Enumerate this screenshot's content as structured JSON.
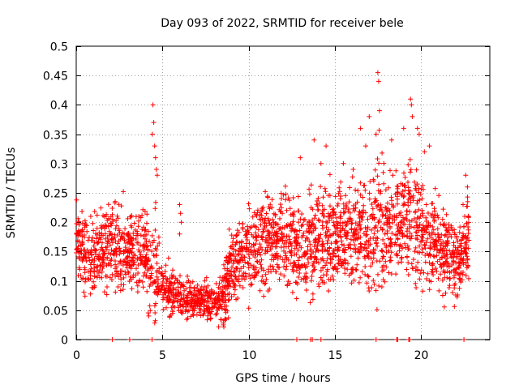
{
  "chart_data": {
    "type": "scatter",
    "title": "Day 093 of 2022, SRMTID for receiver bele",
    "xlabel": "GPS time / hours",
    "ylabel": "SRMTID / TECUs",
    "xlim": [
      0,
      24
    ],
    "ylim": [
      0,
      0.5
    ],
    "xticks": [
      0,
      5,
      10,
      15,
      20
    ],
    "xtick_labels": [
      "0",
      "5",
      "10",
      "15",
      "20"
    ],
    "yticks": [
      0,
      0.05,
      0.1,
      0.15,
      0.2,
      0.25,
      0.3,
      0.35,
      0.4,
      0.45,
      0.5
    ],
    "ytick_labels": [
      "0",
      "0.05",
      "0.1",
      "0.15",
      "0.2",
      "0.25",
      "0.3",
      "0.35",
      "0.4",
      "0.45",
      "0.5"
    ],
    "grid": true,
    "marker": "+",
    "marker_color": "#ff0000",
    "envelope": {
      "description": "approximate typical SRMTID level vs time",
      "x": [
        0,
        0.5,
        1,
        2,
        3,
        4,
        4.5,
        5,
        6,
        7,
        8,
        8.5,
        9,
        10,
        11,
        12,
        13,
        14,
        15,
        16,
        17,
        17.5,
        18,
        19,
        19.5,
        20,
        21,
        22,
        22.5,
        22.8
      ],
      "y": [
        0.17,
        0.15,
        0.14,
        0.16,
        0.15,
        0.14,
        0.13,
        0.09,
        0.075,
        0.07,
        0.06,
        0.07,
        0.12,
        0.15,
        0.17,
        0.17,
        0.15,
        0.17,
        0.17,
        0.18,
        0.18,
        0.2,
        0.19,
        0.2,
        0.21,
        0.18,
        0.16,
        0.13,
        0.16,
        0.18
      ],
      "spread": [
        0.04,
        0.04,
        0.045,
        0.05,
        0.045,
        0.04,
        0.06,
        0.03,
        0.025,
        0.02,
        0.02,
        0.03,
        0.04,
        0.045,
        0.05,
        0.05,
        0.05,
        0.06,
        0.05,
        0.05,
        0.06,
        0.08,
        0.06,
        0.06,
        0.08,
        0.06,
        0.05,
        0.04,
        0.04,
        0.05
      ]
    },
    "spikes": [
      {
        "x": 4.45,
        "y": 0.4
      },
      {
        "x": 4.5,
        "y": 0.37
      },
      {
        "x": 4.42,
        "y": 0.35
      },
      {
        "x": 4.55,
        "y": 0.33
      },
      {
        "x": 4.6,
        "y": 0.31
      },
      {
        "x": 4.65,
        "y": 0.29
      },
      {
        "x": 4.7,
        "y": 0.28
      },
      {
        "x": 13.0,
        "y": 0.31
      },
      {
        "x": 13.8,
        "y": 0.34
      },
      {
        "x": 14.5,
        "y": 0.33
      },
      {
        "x": 16.8,
        "y": 0.33
      },
      {
        "x": 17.0,
        "y": 0.38
      },
      {
        "x": 17.5,
        "y": 0.455
      },
      {
        "x": 17.55,
        "y": 0.44
      },
      {
        "x": 17.6,
        "y": 0.39
      },
      {
        "x": 17.4,
        "y": 0.35
      },
      {
        "x": 18.3,
        "y": 0.34
      },
      {
        "x": 19.0,
        "y": 0.36
      },
      {
        "x": 19.4,
        "y": 0.41
      },
      {
        "x": 19.45,
        "y": 0.4
      },
      {
        "x": 19.5,
        "y": 0.38
      },
      {
        "x": 19.8,
        "y": 0.36
      },
      {
        "x": 19.9,
        "y": 0.35
      },
      {
        "x": 20.2,
        "y": 0.32
      },
      {
        "x": 20.5,
        "y": 0.33
      },
      {
        "x": 16.5,
        "y": 0.36
      },
      {
        "x": 15.5,
        "y": 0.3
      },
      {
        "x": 22.6,
        "y": 0.28
      },
      {
        "x": 22.7,
        "y": 0.26
      },
      {
        "x": 14.2,
        "y": 0.3
      },
      {
        "x": 6.0,
        "y": 0.23
      },
      {
        "x": 6.05,
        "y": 0.215
      },
      {
        "x": 6.1,
        "y": 0.2
      },
      {
        "x": 6.0,
        "y": 0.18
      },
      {
        "x": 8.2,
        "y": 0.05
      }
    ],
    "zero_points_x": [
      2.1,
      3.1,
      4.4,
      12.8,
      13.6,
      13.7,
      14.2,
      17.4,
      18.6,
      18.65,
      19.3,
      19.35,
      22.5
    ],
    "point_count": 2600
  }
}
